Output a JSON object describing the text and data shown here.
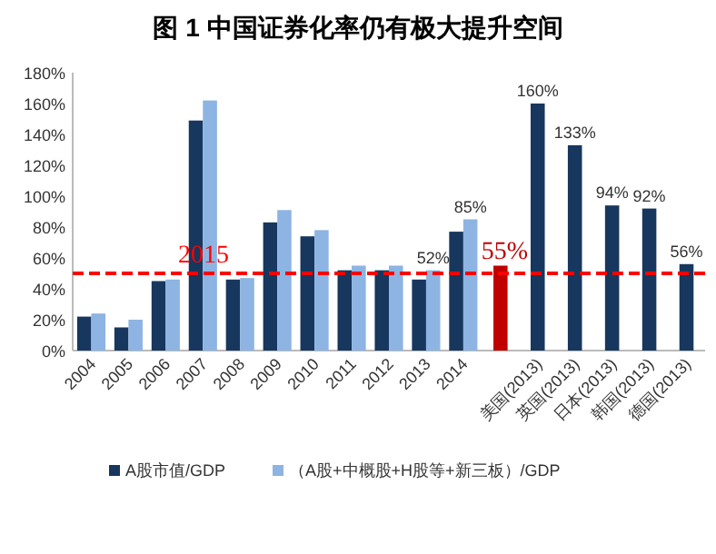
{
  "chart_data": {
    "type": "bar",
    "title": "图 1 中国证券化率仍有极大提升空间",
    "categories": [
      "2004",
      "2005",
      "2006",
      "2007",
      "2008",
      "2009",
      "2010",
      "2011",
      "2012",
      "2013",
      "2014",
      null,
      "美国(2013)",
      "英国(2013)",
      "日本(2013)",
      "韩国(2013)",
      "德国(2013)"
    ],
    "series": [
      {
        "name": "A股市值/GDP",
        "color": "#17375e",
        "colors": [
          "#17375e",
          "#17375e",
          "#17375e",
          "#17375e",
          "#17375e",
          "#17375e",
          "#17375e",
          "#17375e",
          "#17375e",
          "#17375e",
          "#17375e",
          "#c00000",
          "#17375e",
          "#17375e",
          "#17375e",
          "#17375e",
          "#17375e"
        ],
        "values": [
          22,
          15,
          45,
          149,
          46,
          83,
          74,
          52,
          52,
          46,
          77,
          55,
          160,
          133,
          94,
          92,
          56
        ],
        "value_labels": [
          null,
          null,
          null,
          null,
          null,
          null,
          null,
          null,
          null,
          null,
          null,
          "55%",
          "160%",
          "133%",
          "94%",
          "92%",
          "56%"
        ]
      },
      {
        "name": "（A股+中概股+H股等+新三板）/GDP",
        "color": "#8db4e2",
        "values": [
          24,
          20,
          46,
          162,
          47,
          91,
          78,
          55,
          55,
          52,
          85,
          null,
          null,
          null,
          null,
          null,
          null
        ],
        "value_labels": [
          null,
          null,
          null,
          null,
          null,
          null,
          null,
          null,
          null,
          "52%",
          "85%",
          null,
          null,
          null,
          null,
          null,
          null
        ]
      }
    ],
    "ylim": [
      0,
      180
    ],
    "yticks": [
      {
        "value": 0,
        "label": "0%"
      },
      {
        "value": 20,
        "label": "20%"
      },
      {
        "value": 40,
        "label": "40%"
      },
      {
        "value": 60,
        "label": "60%"
      },
      {
        "value": 80,
        "label": "80%"
      },
      {
        "value": 100,
        "label": "100%"
      },
      {
        "value": 120,
        "label": "120%"
      },
      {
        "value": 140,
        "label": "140%"
      },
      {
        "value": 160,
        "label": "160%"
      },
      {
        "value": 180,
        "label": "180%"
      }
    ],
    "ref_lines": [
      {
        "axis": "y",
        "value": 50,
        "color": "#ff0000",
        "line_style": "dashed"
      }
    ],
    "annotations": [
      "2015"
    ],
    "grid": false,
    "legend": "bottom"
  }
}
